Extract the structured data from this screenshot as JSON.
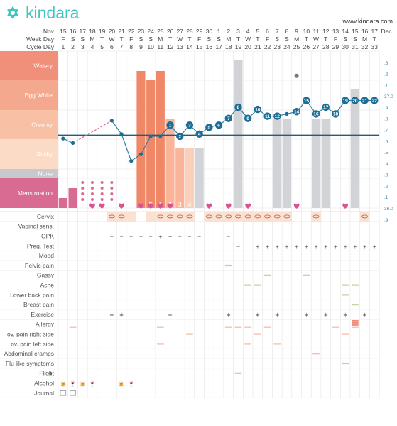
{
  "brand": {
    "name": "kindara",
    "url": "www.kindara.com",
    "color": "#40c5c0"
  },
  "header_labels": {
    "month": "Nov",
    "weekday": "Week Day",
    "cycle": "Cycle Day"
  },
  "zones": [
    "Watery",
    "Egg White",
    "Creamy",
    "Sticky",
    "None",
    "Menstruation"
  ],
  "zone_colors": [
    "#f0907a",
    "#f4a88e",
    "#f8c0a5",
    "#fbdac6",
    "#c8c9cc",
    "#d96a92"
  ],
  "temp_axis_labels": [
    ".3",
    ".2",
    ".1",
    "37.0",
    ".9",
    ".8",
    ".7",
    ".6",
    ".5",
    ".4",
    ".3",
    ".2",
    ".1",
    "36.0",
    ".9"
  ],
  "chart_data": {
    "type": "line",
    "dates": [
      "15",
      "16",
      "17",
      "18",
      "19",
      "20",
      "21",
      "22",
      "23",
      "24",
      "25",
      "26",
      "27",
      "28",
      "29",
      "30",
      "1",
      "2",
      "3",
      "4",
      "5",
      "6",
      "7",
      "8",
      "9",
      "10",
      "11",
      "12",
      "13",
      "14",
      "15",
      "16",
      "17"
    ],
    "months": [
      {
        "index": 0,
        "label": "Nov"
      },
      {
        "index": 16,
        "label": "Dec"
      }
    ],
    "weekdays": [
      "F",
      "S",
      "S",
      "M",
      "T",
      "W",
      "T",
      "F",
      "S",
      "S",
      "M",
      "T",
      "W",
      "T",
      "F",
      "S",
      "S",
      "M",
      "T",
      "W",
      "T",
      "F",
      "S",
      "S",
      "M",
      "T",
      "W",
      "T",
      "F",
      "S",
      "S",
      "M",
      "T"
    ],
    "cycle_days": [
      1,
      2,
      3,
      4,
      5,
      6,
      7,
      8,
      9,
      10,
      11,
      12,
      13,
      14,
      15,
      16,
      17,
      18,
      19,
      20,
      21,
      22,
      23,
      24,
      25,
      26,
      27,
      28,
      29,
      30,
      31,
      32,
      33
    ],
    "temperature_unit": "°C",
    "temperature": [
      36.52,
      36.48,
      null,
      null,
      null,
      36.68,
      36.56,
      36.32,
      36.38,
      36.54,
      36.54,
      36.64,
      36.54,
      36.64,
      36.56,
      36.62,
      36.64,
      36.7,
      36.8,
      36.7,
      36.78,
      36.72,
      36.72,
      36.74,
      36.76,
      36.86,
      36.74,
      36.8,
      36.74,
      36.86,
      36.86,
      36.86,
      36.86
    ],
    "temperature_node_labels": [
      null,
      null,
      null,
      null,
      null,
      null,
      null,
      null,
      null,
      null,
      null,
      "1",
      "2",
      "3",
      "4",
      "5",
      "6",
      "7",
      "8",
      "9",
      "10",
      "11",
      "12",
      null,
      "14",
      "15",
      "16",
      "17",
      "18",
      "19",
      "20",
      "21",
      "22"
    ],
    "temperature_outlier": {
      "day_index": 24,
      "value": 37.08
    },
    "coverline": 36.55,
    "ylim": [
      35.9,
      37.3
    ],
    "fluid_bars": [
      {
        "day_index": 0,
        "level": "Menstruation",
        "kind": "menses-heavy"
      },
      {
        "day_index": 1,
        "level": "Menstruation",
        "kind": "menses-heavy"
      },
      {
        "day_index": 8,
        "level": "Watery",
        "kind": "peak"
      },
      {
        "day_index": 9,
        "level": "Egg White",
        "kind": "peak"
      },
      {
        "day_index": 10,
        "level": "Watery",
        "kind": "peak"
      },
      {
        "day_index": 11,
        "level": "Creamy",
        "kind": "post"
      },
      {
        "day_index": 12,
        "level": "Sticky",
        "kind": "post"
      },
      {
        "day_index": 13,
        "level": "Sticky",
        "kind": "faint"
      },
      {
        "day_index": 14,
        "level": "Sticky",
        "kind": "none"
      },
      {
        "day_index": 18,
        "level": "Watery",
        "kind": "none"
      },
      {
        "day_index": 22,
        "level": "Creamy",
        "kind": "none"
      },
      {
        "day_index": 23,
        "level": "Creamy",
        "kind": "none"
      },
      {
        "day_index": 26,
        "level": "Creamy",
        "kind": "none"
      },
      {
        "day_index": 27,
        "level": "Creamy",
        "kind": "none"
      },
      {
        "day_index": 30,
        "level": "Egg White",
        "kind": "none"
      }
    ],
    "menstruation_spotting": [
      2,
      3,
      4,
      5
    ],
    "peak_labels": [
      {
        "day_index": 9,
        "text": "P"
      },
      {
        "day_index": 10,
        "text": "1"
      },
      {
        "day_index": 11,
        "text": "2"
      },
      {
        "day_index": 12,
        "text": "3"
      },
      {
        "day_index": 13,
        "text": "4"
      }
    ],
    "hearts": [
      3,
      4,
      6,
      8,
      9,
      10,
      11,
      15,
      17,
      19,
      24,
      29
    ],
    "sex_rows": [
      "Cervix",
      "Vaginal sens.",
      "OPK",
      "Preg. Test",
      "Mood",
      "Pelvic pain",
      "Gassy",
      "Acne",
      "Lower back pain",
      "Breast pain",
      "Exercise",
      "Allergy",
      "ov. pain right side",
      "ov. pain left side",
      "Abdominal cramps",
      "Flu like symptoms",
      "Flight",
      "Alcohol",
      "Journal"
    ],
    "cervix_days": [
      5,
      6,
      10,
      11,
      12,
      13,
      15,
      16,
      17,
      18,
      19,
      20,
      21,
      22,
      23,
      26,
      31
    ],
    "cervix_shade_days": [
      5,
      6,
      7,
      9,
      10,
      11,
      12,
      13,
      15,
      16,
      17,
      18,
      19,
      20,
      21,
      22,
      23,
      26,
      31
    ],
    "opk": [
      {
        "day": 5,
        "v": "−"
      },
      {
        "day": 6,
        "v": "−"
      },
      {
        "day": 7,
        "v": "−"
      },
      {
        "day": 8,
        "v": "−"
      },
      {
        "day": 9,
        "v": "−"
      },
      {
        "day": 10,
        "v": "+"
      },
      {
        "day": 11,
        "v": "+"
      },
      {
        "day": 12,
        "v": "−"
      },
      {
        "day": 13,
        "v": "−"
      },
      {
        "day": 14,
        "v": "−"
      },
      {
        "day": 17,
        "v": "−"
      }
    ],
    "preg_test": [
      {
        "day": 18,
        "v": "−"
      },
      {
        "day": 20,
        "v": "+"
      },
      {
        "day": 21,
        "v": "+"
      },
      {
        "day": 22,
        "v": "+"
      },
      {
        "day": 23,
        "v": "+"
      },
      {
        "day": 24,
        "v": "+"
      },
      {
        "day": 25,
        "v": "+"
      },
      {
        "day": 26,
        "v": "+"
      },
      {
        "day": 27,
        "v": "+"
      },
      {
        "day": 28,
        "v": "+"
      },
      {
        "day": 29,
        "v": "+"
      },
      {
        "day": 30,
        "v": "+"
      },
      {
        "day": 31,
        "v": "+"
      },
      {
        "day": 32,
        "v": "+"
      }
    ],
    "symptom_marks": [
      {
        "row": "Pelvic pain",
        "days": [
          17
        ]
      },
      {
        "row": "Gassy",
        "days": [
          21,
          25
        ]
      },
      {
        "row": "Acne",
        "days": [
          19,
          20,
          29,
          30
        ]
      },
      {
        "row": "Lower back pain",
        "days": [
          29
        ]
      },
      {
        "row": "Breast pain",
        "days": [
          30
        ]
      },
      {
        "row": "Allergy",
        "days": [
          1,
          10,
          17,
          18,
          19,
          21,
          28,
          30
        ]
      },
      {
        "row": "ov. pain right side",
        "days": [
          13,
          20,
          29
        ]
      },
      {
        "row": "ov. pain left side",
        "days": [
          10,
          19,
          22
        ]
      },
      {
        "row": "Abdominal cramps",
        "days": [
          26
        ]
      },
      {
        "row": "Flu like symptoms",
        "days": [
          29
        ]
      },
      {
        "row": "Flight",
        "days": [
          18
        ]
      }
    ],
    "allergy_triple_day": 30,
    "exercise_days": [
      5,
      6,
      11,
      17,
      20,
      22,
      25,
      27,
      29,
      31
    ],
    "alcohol_days": [
      0,
      1,
      2,
      3,
      6,
      7
    ],
    "journal_days": [
      0,
      1
    ]
  }
}
